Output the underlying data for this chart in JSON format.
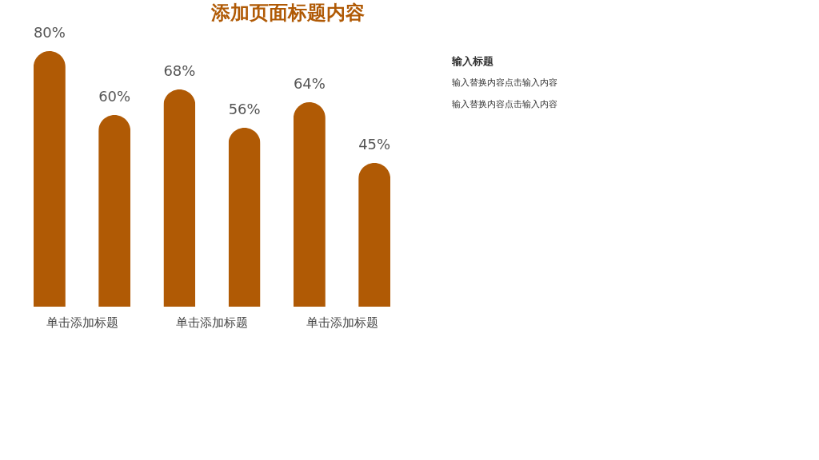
{
  "chart_data": {
    "type": "bar",
    "title": "添加页面标题内容",
    "categories": [
      "单击添加标题",
      "单击添加标题",
      "单击添加标题"
    ],
    "series": [
      {
        "color": "#b05a05",
        "values": [
          80,
          68,
          64
        ],
        "value_labels": [
          "80%",
          "68%",
          "64%"
        ]
      },
      {
        "color": "#b05a05",
        "values": [
          60,
          56,
          45
        ],
        "value_labels": [
          "60%",
          "56%",
          "45%"
        ]
      }
    ],
    "annotations": [
      "输入标题",
      "输入替换内容点击输入内容输入替换内容点击输入内容"
    ]
  }
}
